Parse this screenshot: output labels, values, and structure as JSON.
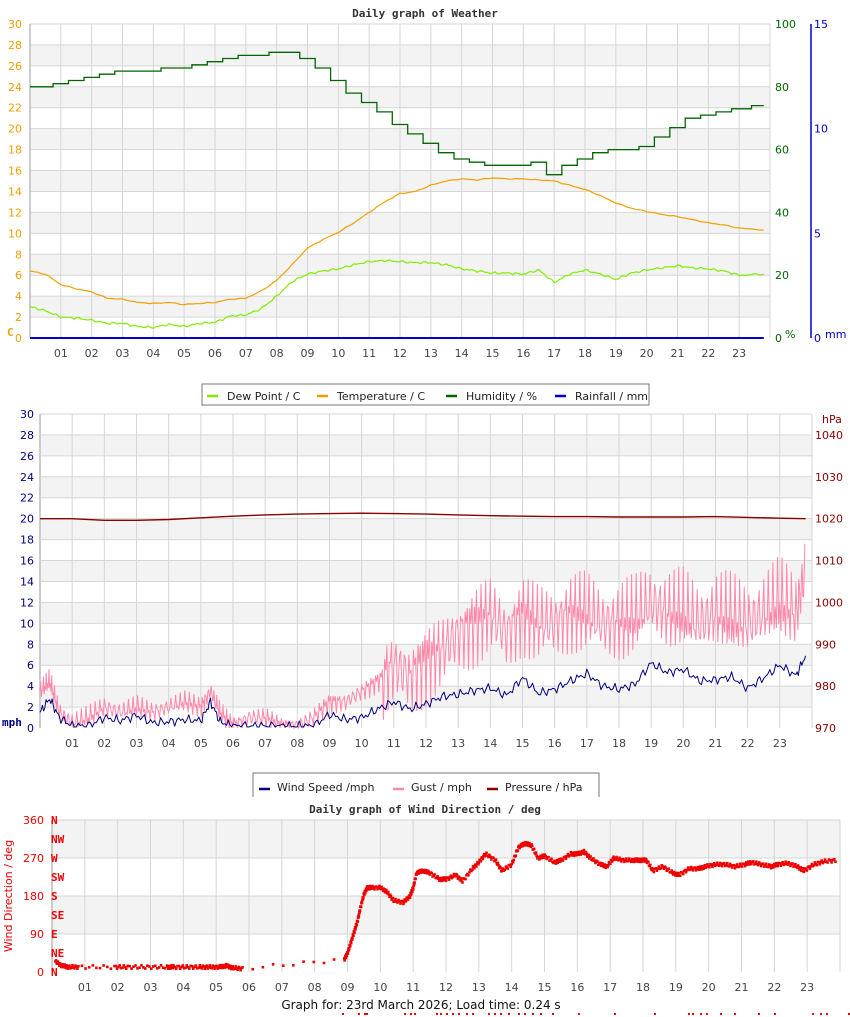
{
  "chart_data": [
    {
      "type": "line",
      "title": "Daily graph of Weather",
      "xlabel": "",
      "x_ticks": [
        "01",
        "02",
        "03",
        "04",
        "05",
        "06",
        "07",
        "08",
        "09",
        "10",
        "11",
        "12",
        "13",
        "14",
        "15",
        "16",
        "17",
        "18",
        "19",
        "20",
        "21",
        "22",
        "23"
      ],
      "y_axes": [
        {
          "side": "left",
          "label": "C",
          "range": [
            0,
            30
          ],
          "ticks": [
            0,
            2,
            4,
            6,
            8,
            10,
            12,
            14,
            16,
            18,
            20,
            22,
            24,
            26,
            28,
            30
          ],
          "color": "#f0a000"
        },
        {
          "side": "right",
          "label": "%",
          "range": [
            0,
            100
          ],
          "ticks": [
            0,
            20,
            40,
            60,
            80,
            100
          ],
          "color": "#006600"
        },
        {
          "side": "right",
          "label": "mm",
          "range": [
            0,
            15
          ],
          "ticks": [
            0,
            5,
            10,
            15
          ],
          "color": "#0000cc"
        }
      ],
      "grid": true,
      "legend_position": "bottom",
      "series": [
        {
          "name": "Dew Point / C",
          "color": "#80ee00",
          "axis": "C",
          "x": [
            0,
            0.5,
            1,
            1.5,
            2,
            2.5,
            3,
            3.5,
            4,
            4.5,
            5,
            5.5,
            6,
            6.5,
            7,
            7.5,
            8,
            8.5,
            9,
            9.5,
            10,
            10.5,
            11,
            11.5,
            12,
            12.5,
            13,
            13.5,
            14,
            14.5,
            15,
            15.5,
            16,
            16.5,
            17,
            17.5,
            18,
            18.5,
            19,
            19.5,
            20,
            20.5,
            21,
            21.5,
            22,
            22.5,
            23,
            23.8
          ],
          "values": [
            3.0,
            2.6,
            2.0,
            1.9,
            1.7,
            1.4,
            1.4,
            1.1,
            1.0,
            1.3,
            1.1,
            1.4,
            1.5,
            2.1,
            2.2,
            2.8,
            4.0,
            5.4,
            6.1,
            6.4,
            6.6,
            7.0,
            7.3,
            7.4,
            7.3,
            7.2,
            7.2,
            7.0,
            6.6,
            6.4,
            6.2,
            6.2,
            6.1,
            6.5,
            5.3,
            6.1,
            6.5,
            6.1,
            5.6,
            6.2,
            6.5,
            6.7,
            6.9,
            6.7,
            6.6,
            6.4,
            6.0,
            6.1
          ]
        },
        {
          "name": "Temperature / C",
          "color": "#f0a000",
          "axis": "C",
          "x": [
            0,
            0.5,
            1,
            1.5,
            2,
            2.5,
            3,
            3.5,
            4,
            4.5,
            5,
            5.5,
            6,
            6.5,
            7,
            7.5,
            8,
            8.5,
            9,
            9.5,
            10,
            10.5,
            11,
            11.5,
            12,
            12.5,
            13,
            13.5,
            14,
            14.5,
            15,
            15.5,
            16,
            16.5,
            17,
            17.5,
            18,
            18.5,
            19,
            19.5,
            20,
            20.5,
            21,
            21.5,
            22,
            22.5,
            23,
            23.8
          ],
          "values": [
            6.4,
            6.1,
            5.1,
            4.7,
            4.4,
            3.8,
            3.7,
            3.4,
            3.3,
            3.4,
            3.2,
            3.3,
            3.4,
            3.7,
            3.8,
            4.5,
            5.5,
            7.0,
            8.6,
            9.4,
            10.1,
            11.0,
            12.0,
            13.0,
            13.8,
            14.0,
            14.6,
            15.0,
            15.2,
            15.1,
            15.3,
            15.2,
            15.2,
            15.1,
            15.0,
            14.6,
            14.2,
            13.6,
            12.9,
            12.4,
            12.1,
            11.8,
            11.6,
            11.3,
            11.0,
            10.8,
            10.5,
            10.3
          ]
        },
        {
          "name": "Humidity / %",
          "color": "#006600",
          "axis": "%",
          "x": [
            0,
            0.5,
            1,
            1.5,
            2,
            2.5,
            3,
            3.5,
            4,
            4.5,
            5,
            5.5,
            6,
            6.5,
            7,
            7.5,
            8,
            8.5,
            9,
            9.5,
            10,
            10.5,
            11,
            11.5,
            12,
            12.5,
            13,
            13.5,
            14,
            14.5,
            15,
            15.5,
            16,
            16.5,
            17,
            17.5,
            18,
            18.5,
            19,
            19.5,
            20,
            20.5,
            21,
            21.5,
            22,
            22.5,
            23,
            23.8
          ],
          "values": [
            80,
            80,
            81,
            82,
            83,
            84,
            85,
            85,
            85,
            86,
            86,
            87,
            88,
            89,
            90,
            90,
            91,
            91,
            89,
            86,
            82,
            78,
            75,
            72,
            68,
            65,
            62,
            59,
            57,
            56,
            55,
            55,
            55,
            56,
            52,
            55,
            57,
            59,
            60,
            60,
            61,
            64,
            67,
            70,
            71,
            72,
            73,
            74
          ]
        },
        {
          "name": "Rainfall / mm",
          "color": "#0000cc",
          "axis": "mm",
          "x": [
            0,
            23.8
          ],
          "values": [
            0,
            0
          ]
        }
      ]
    },
    {
      "type": "line",
      "title": "",
      "xlabel": "",
      "x_ticks": [
        "01",
        "02",
        "03",
        "04",
        "05",
        "06",
        "07",
        "08",
        "09",
        "10",
        "11",
        "12",
        "13",
        "14",
        "15",
        "16",
        "17",
        "18",
        "19",
        "20",
        "21",
        "22",
        "23"
      ],
      "y_axes": [
        {
          "side": "left",
          "label": "mph",
          "range": [
            0,
            30
          ],
          "ticks": [
            0,
            2,
            4,
            6,
            8,
            10,
            12,
            14,
            16,
            18,
            20,
            22,
            24,
            26,
            28,
            30
          ],
          "color": "#000080"
        },
        {
          "side": "right",
          "label": "hPa",
          "range": [
            970,
            1045
          ],
          "ticks": [
            970,
            980,
            990,
            1000,
            1010,
            1020,
            1030,
            1040
          ],
          "color": "#880000"
        }
      ],
      "grid": true,
      "legend_position": "bottom",
      "series": [
        {
          "name": "Wind Speed /mph",
          "color": "#000080",
          "axis": "mph",
          "x": [
            0,
            0.3,
            0.6,
            1,
            1.5,
            2,
            2.5,
            3,
            3.5,
            4,
            4.5,
            5,
            5.3,
            5.6,
            6,
            6.5,
            7,
            7.5,
            8,
            8.5,
            9,
            9.5,
            10,
            10.5,
            11,
            11.5,
            12,
            12.5,
            13,
            13.5,
            14,
            14.5,
            15,
            15.5,
            16,
            16.5,
            17,
            17.5,
            18,
            18.5,
            19,
            19.5,
            20,
            20.5,
            21,
            21.5,
            22,
            22.5,
            23,
            23.5,
            23.8
          ],
          "values": [
            1.5,
            2.8,
            1.0,
            0.2,
            0.2,
            1.0,
            0.7,
            1.2,
            0.5,
            0.6,
            0.8,
            0.7,
            2.5,
            0.6,
            0.2,
            0.2,
            0.2,
            0.2,
            0.2,
            0.2,
            1.3,
            0.8,
            1.0,
            1.8,
            2.5,
            1.8,
            2.3,
            3.0,
            3.2,
            3.6,
            3.8,
            3.1,
            4.8,
            3.3,
            3.7,
            4.5,
            5.2,
            4.0,
            3.7,
            4.2,
            6.2,
            5.3,
            5.6,
            4.5,
            4.6,
            4.9,
            3.8,
            4.8,
            6.0,
            5.0,
            6.9
          ]
        },
        {
          "name": "Gust / mph",
          "color": "#ff88aa",
          "axis": "mph",
          "x": [
            0,
            0.3,
            0.6,
            1,
            1.5,
            2,
            2.5,
            3,
            3.5,
            4,
            4.5,
            5,
            5.3,
            5.6,
            6,
            6.5,
            7,
            7.5,
            8,
            8.5,
            9,
            9.5,
            10,
            10.5,
            11,
            11.5,
            12,
            12.5,
            13,
            13.5,
            14,
            14.5,
            15,
            15.5,
            16,
            16.5,
            17,
            17.5,
            18,
            18.5,
            19,
            19.5,
            20,
            20.5,
            21,
            21.5,
            22,
            22.5,
            23,
            23.5,
            23.8
          ],
          "values": [
            3.5,
            4.5,
            1.5,
            0.5,
            1.0,
            2.0,
            1.5,
            2.0,
            1.5,
            2.0,
            2.5,
            2.0,
            3.5,
            1.5,
            0.2,
            1.0,
            1.0,
            0.2,
            0.2,
            1.0,
            2.5,
            2.5,
            3.5,
            4.5,
            6.0,
            5.0,
            6.5,
            7.5,
            9.0,
            10.0,
            11.0,
            9.0,
            11.0,
            10.0,
            10.0,
            11.0,
            11.0,
            10.0,
            10.0,
            10.5,
            12.0,
            11.0,
            11.0,
            10.0,
            11.0,
            10.5,
            10.0,
            11.0,
            12.0,
            11.0,
            15.0
          ]
        },
        {
          "name": "Pressure / hPa",
          "color": "#880000",
          "axis": "hPa",
          "x": [
            0,
            1,
            2,
            3,
            4,
            5,
            6,
            7,
            8,
            9,
            10,
            11,
            12,
            13,
            14,
            15,
            16,
            17,
            18,
            19,
            20,
            21,
            22,
            23,
            23.8
          ],
          "values": [
            1020.0,
            1020.0,
            1019.6,
            1019.6,
            1019.8,
            1020.2,
            1020.6,
            1020.9,
            1021.1,
            1021.2,
            1021.3,
            1021.2,
            1021.1,
            1020.9,
            1020.7,
            1020.6,
            1020.5,
            1020.5,
            1020.4,
            1020.4,
            1020.4,
            1020.5,
            1020.3,
            1020.1,
            1020.0
          ]
        }
      ]
    },
    {
      "type": "scatter",
      "title": "Daily graph of Wind Direction / deg",
      "xlabel": "",
      "ylabel": "Wind Direction / deg",
      "ylim": [
        0,
        360
      ],
      "y_ticks": [
        0,
        90,
        180,
        270,
        360
      ],
      "compass_labels": [
        "N",
        "NE",
        "E",
        "SE",
        "S",
        "SW",
        "W",
        "NW",
        "N"
      ],
      "x_ticks": [
        "01",
        "02",
        "03",
        "04",
        "05",
        "06",
        "07",
        "08",
        "09",
        "10",
        "11",
        "12",
        "13",
        "14",
        "15",
        "16",
        "17",
        "18",
        "19",
        "20",
        "21",
        "22",
        "23"
      ],
      "grid": true,
      "series": [
        {
          "name": "Wind Direction / deg",
          "color": "#ee0000",
          "x": [
            0.1,
            0.3,
            0.5,
            0.8,
            1.9,
            2.3,
            2.9,
            3.5,
            3.7,
            4.1,
            4.5,
            4.8,
            5.1,
            5.3,
            5.5,
            5.8,
            8.9,
            9.0,
            9.1,
            9.2,
            9.3,
            9.4,
            9.5,
            9.6,
            9.7,
            10.0,
            10.2,
            10.4,
            10.7,
            10.9,
            11.0,
            11.1,
            11.3,
            11.5,
            11.8,
            12.0,
            12.3,
            12.5,
            12.8,
            13.0,
            13.2,
            13.5,
            13.7,
            14.0,
            14.2,
            14.4,
            14.6,
            14.8,
            15.0,
            15.3,
            15.5,
            15.8,
            16.0,
            16.2,
            16.4,
            16.7,
            16.9,
            17.1,
            17.4,
            17.7,
            17.9,
            18.1,
            18.3,
            18.6,
            18.9,
            19.1,
            19.4,
            19.7,
            19.9,
            20.2,
            20.5,
            20.8,
            21.1,
            21.3,
            21.6,
            21.9,
            22.1,
            22.4,
            22.7,
            22.9,
            23.2,
            23.5,
            23.9
          ],
          "values": [
            25,
            15,
            12,
            12,
            12,
            12,
            12,
            12,
            12,
            12,
            12,
            12,
            12,
            15,
            10,
            8,
            30,
            45,
            70,
            95,
            120,
            155,
            185,
            200,
            200,
            200,
            190,
            170,
            165,
            180,
            200,
            235,
            240,
            235,
            220,
            220,
            230,
            215,
            245,
            260,
            280,
            265,
            240,
            255,
            295,
            305,
            300,
            270,
            275,
            260,
            265,
            280,
            280,
            285,
            270,
            255,
            250,
            270,
            265,
            265,
            265,
            265,
            240,
            250,
            235,
            230,
            245,
            245,
            250,
            255,
            255,
            250,
            255,
            260,
            255,
            250,
            255,
            258,
            250,
            240,
            255,
            262,
            265
          ]
        }
      ]
    }
  ],
  "charts": {
    "weather": {
      "title": "Daily graph of Weather",
      "left_unit": "C",
      "right_unit_humidity": "%",
      "right_unit_rain": "mm",
      "y_left": [
        "0",
        "2",
        "4",
        "6",
        "8",
        "10",
        "12",
        "14",
        "16",
        "18",
        "20",
        "22",
        "24",
        "26",
        "28",
        "30"
      ],
      "y_humidity": [
        "0",
        "20",
        "40",
        "60",
        "80",
        "100"
      ],
      "y_rain": [
        "0",
        "5",
        "10",
        "15"
      ],
      "legend": [
        {
          "label": "Dew Point / C",
          "color": "#80ee00"
        },
        {
          "label": "Temperature / C",
          "color": "#f0a000"
        },
        {
          "label": "Humidity / %",
          "color": "#006600"
        },
        {
          "label": "Rainfall / mm",
          "color": "#0000cc"
        }
      ]
    },
    "wind": {
      "left_unit": "mph",
      "right_unit": "hPa",
      "y_left": [
        "0",
        "2",
        "4",
        "6",
        "8",
        "10",
        "12",
        "14",
        "16",
        "18",
        "20",
        "22",
        "24",
        "26",
        "28",
        "30"
      ],
      "y_right": [
        "970",
        "980",
        "990",
        "1000",
        "1010",
        "1020",
        "1030",
        "1040"
      ],
      "legend": [
        {
          "label": "Wind Speed /mph",
          "color": "#000080"
        },
        {
          "label": "Gust / mph",
          "color": "#ff88aa"
        },
        {
          "label": "Pressure / hPa",
          "color": "#880000"
        }
      ]
    },
    "direction": {
      "title": "Daily graph of Wind Direction / deg",
      "ylabel": "Wind Direction / deg",
      "y_left": [
        "0",
        "90",
        "180",
        "270",
        "360"
      ],
      "compass": [
        "N",
        "NE",
        "E",
        "SE",
        "S",
        "SW",
        "W",
        "NW",
        "N"
      ]
    },
    "x_ticks": [
      "01",
      "02",
      "03",
      "04",
      "05",
      "06",
      "07",
      "08",
      "09",
      "10",
      "11",
      "12",
      "13",
      "14",
      "15",
      "16",
      "17",
      "18",
      "19",
      "20",
      "21",
      "22",
      "23"
    ]
  },
  "footer": {
    "text": "Graph for: 23rd March 2026; Load time: 0.24 s"
  }
}
